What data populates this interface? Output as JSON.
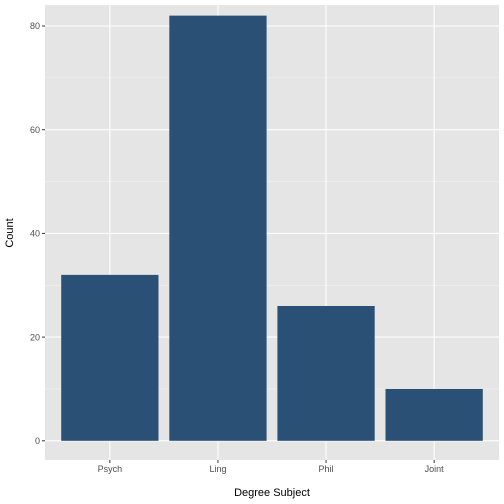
{
  "chart_data": {
    "type": "bar",
    "categories": [
      "Psych",
      "Ling",
      "Phil",
      "Joint"
    ],
    "values": [
      32,
      82,
      26,
      10
    ],
    "xlabel": "Degree Subject",
    "ylabel": "Count",
    "yticks": [
      0,
      20,
      40,
      60,
      80
    ],
    "ylim": [
      0,
      86.1
    ],
    "grid": true,
    "colors": {
      "bar": "#2b5076",
      "panel": "#e5e5e5",
      "grid_major": "#ffffff",
      "grid_minor": "#f2f2f2"
    }
  }
}
